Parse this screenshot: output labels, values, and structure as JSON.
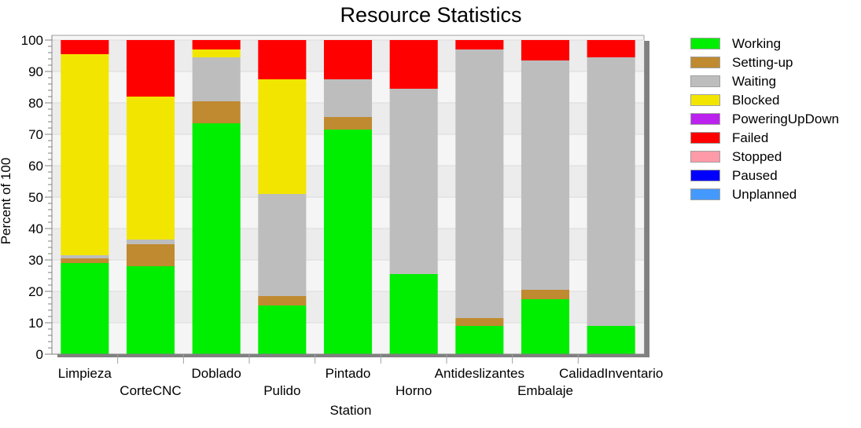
{
  "chart_data": {
    "type": "bar",
    "stacked": true,
    "title": "Resource Statistics",
    "xlabel": "Station",
    "ylabel": "Percent of 100",
    "ylim": [
      0,
      100
    ],
    "yticks": [
      0,
      10,
      20,
      30,
      40,
      50,
      60,
      70,
      80,
      90,
      100
    ],
    "grid": true,
    "legend_position": "right",
    "categories": [
      "Limpieza",
      "CorteCNC",
      "Doblado",
      "Pulido",
      "Pintado",
      "Horno",
      "Antideslizantes",
      "Embalaje",
      "CalidadInventario"
    ],
    "series": [
      {
        "name": "Working",
        "color": "#00ee00",
        "values": [
          29,
          28,
          73.5,
          15.5,
          71.5,
          25.5,
          9,
          17.5,
          9
        ]
      },
      {
        "name": "Setting-up",
        "color": "#c08a30",
        "values": [
          1.5,
          7,
          7,
          3,
          4,
          0,
          2.5,
          3,
          0
        ]
      },
      {
        "name": "Waiting",
        "color": "#bdbdbd",
        "values": [
          1,
          1.5,
          14,
          32.5,
          12,
          59,
          85.5,
          73,
          85.5
        ]
      },
      {
        "name": "Blocked",
        "color": "#f2e600",
        "values": [
          64,
          45.5,
          2.5,
          36.5,
          0,
          0,
          0,
          0,
          0
        ]
      },
      {
        "name": "PoweringUpDown",
        "color": "#bb22ee",
        "values": [
          0,
          0,
          0,
          0,
          0,
          0,
          0,
          0,
          0
        ]
      },
      {
        "name": "Failed",
        "color": "#ff0000",
        "values": [
          4.5,
          18,
          3,
          12.5,
          12.5,
          15.5,
          3,
          6.5,
          5.5
        ]
      },
      {
        "name": "Stopped",
        "color": "#ff9aa8",
        "values": [
          0,
          0,
          0,
          0,
          0,
          0,
          0,
          0,
          0
        ]
      },
      {
        "name": "Paused",
        "color": "#0000ff",
        "values": [
          0,
          0,
          0,
          0,
          0,
          0,
          0,
          0,
          0
        ]
      },
      {
        "name": "Unplanned",
        "color": "#4499ff",
        "values": [
          0,
          0,
          0,
          0,
          0,
          0,
          0,
          0,
          0
        ]
      }
    ]
  }
}
